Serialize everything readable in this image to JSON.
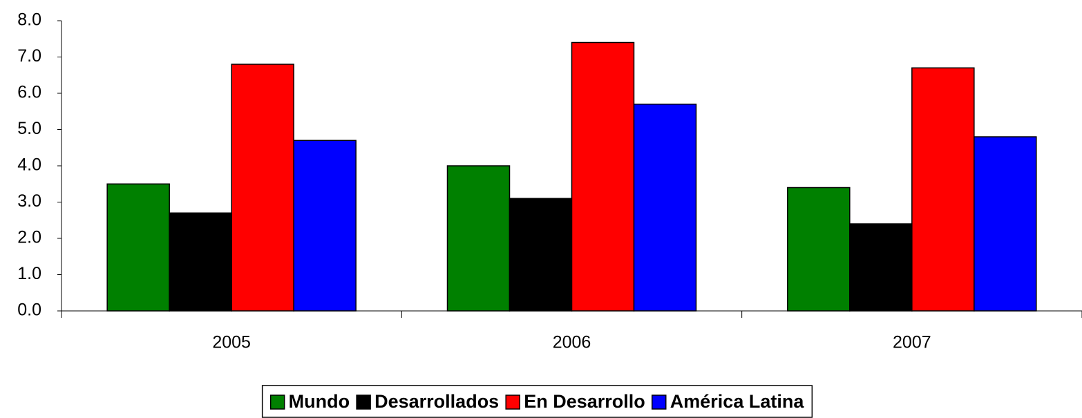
{
  "chart_data": {
    "type": "bar",
    "categories": [
      "2005",
      "2006",
      "2007"
    ],
    "series": [
      {
        "name": "Mundo",
        "color": "#008000",
        "values": [
          3.5,
          4.0,
          3.4
        ]
      },
      {
        "name": "Desarrollados",
        "color": "#000000",
        "values": [
          2.7,
          3.1,
          2.4
        ]
      },
      {
        "name": "En Desarrollo",
        "color": "#ff0000",
        "values": [
          6.8,
          7.4,
          6.7
        ]
      },
      {
        "name": "América Latina",
        "color": "#0000ff",
        "values": [
          4.7,
          5.7,
          4.8
        ]
      }
    ],
    "ylim": [
      0,
      8
    ],
    "yticks": [
      {
        "value": 0,
        "label": "0.0"
      },
      {
        "value": 1,
        "label": "1.0"
      },
      {
        "value": 2,
        "label": "2.0"
      },
      {
        "value": 3,
        "label": "3.0"
      },
      {
        "value": 4,
        "label": "4.0"
      },
      {
        "value": 5,
        "label": "5.0"
      },
      {
        "value": 6,
        "label": "6.0"
      },
      {
        "value": 7,
        "label": "7.0"
      },
      {
        "value": 8,
        "label": "8.0"
      }
    ],
    "legend": "bottom"
  }
}
